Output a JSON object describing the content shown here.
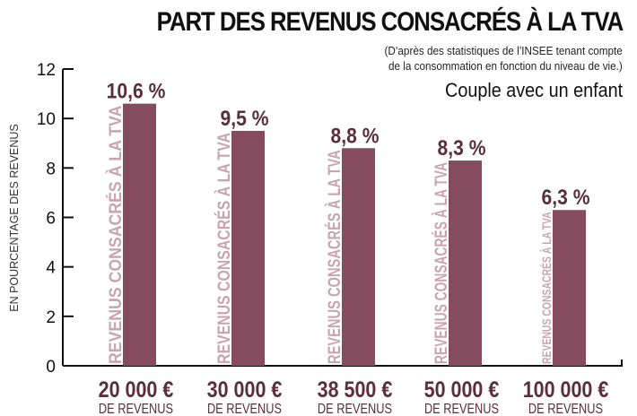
{
  "chart_data": {
    "type": "bar",
    "title": "PART DES REVENUS CONSACRÉS À LA TVA",
    "subtitle_lines": [
      "(D’après des statistiques de l’INSEE tenant compte",
      "de la consommation en fonction du niveau de vie.)"
    ],
    "caption": "Couple avec un enfant",
    "ylabel": "EN POURCENTAGE DES REVENUS",
    "xlabel": "",
    "ylim": [
      0,
      12
    ],
    "yticks": [
      0,
      2,
      4,
      6,
      8,
      10,
      12
    ],
    "grid": false,
    "categories": [
      "20 000 €",
      "30 000 €",
      "38 500 €",
      "50 000 €",
      "100 000 €"
    ],
    "category_sublabel": "DE REVENUS",
    "values": [
      10.6,
      9.5,
      8.8,
      8.3,
      6.3
    ],
    "value_labels": [
      "10,6 %",
      "9,5 %",
      "8,8 %",
      "8,3 %",
      "6,3 %"
    ],
    "bar_inner_label": "REVENUS CONSACRÉS À LA TVA",
    "colors": {
      "bar": "#854C60",
      "bar_text": "#C9A4AE",
      "value_text": "#5A2E3D",
      "axis": "#111111"
    }
  }
}
